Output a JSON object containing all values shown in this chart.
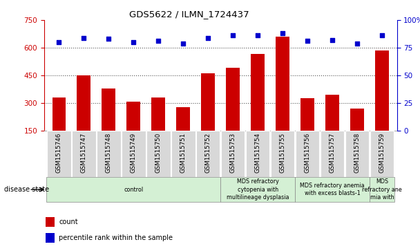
{
  "title": "GDS5622 / ILMN_1724437",
  "samples": [
    "GSM1515746",
    "GSM1515747",
    "GSM1515748",
    "GSM1515749",
    "GSM1515750",
    "GSM1515751",
    "GSM1515752",
    "GSM1515753",
    "GSM1515754",
    "GSM1515755",
    "GSM1515756",
    "GSM1515757",
    "GSM1515758",
    "GSM1515759"
  ],
  "counts": [
    330,
    450,
    380,
    305,
    330,
    278,
    460,
    490,
    565,
    660,
    325,
    345,
    268,
    585
  ],
  "percentiles": [
    80,
    84,
    83,
    80,
    81,
    79,
    84,
    86,
    86,
    88,
    81,
    82,
    79,
    86
  ],
  "bar_color": "#cc0000",
  "dot_color": "#0000cc",
  "ylim_left": [
    150,
    750
  ],
  "ylim_right": [
    0,
    100
  ],
  "yticks_left": [
    150,
    300,
    450,
    600,
    750
  ],
  "yticks_right": [
    0,
    25,
    50,
    75,
    100
  ],
  "grid_vals": [
    300,
    450,
    600
  ],
  "disease_groups": [
    {
      "label": "control",
      "start": 0,
      "end": 7,
      "color": "#d4f0d4"
    },
    {
      "label": "MDS refractory\ncytopenia with\nmultilineage dysplasia",
      "start": 7,
      "end": 10,
      "color": "#d4f0d4"
    },
    {
      "label": "MDS refractory anemia\nwith excess blasts-1",
      "start": 10,
      "end": 13,
      "color": "#d4f0d4"
    },
    {
      "label": "MDS\nrefractory ane\nmia with",
      "start": 13,
      "end": 14,
      "color": "#d4f0d4"
    }
  ],
  "tick_bg_color": "#d8d8d8",
  "disease_state_label": "disease state",
  "legend_count_label": "count",
  "legend_percentile_label": "percentile rank within the sample"
}
